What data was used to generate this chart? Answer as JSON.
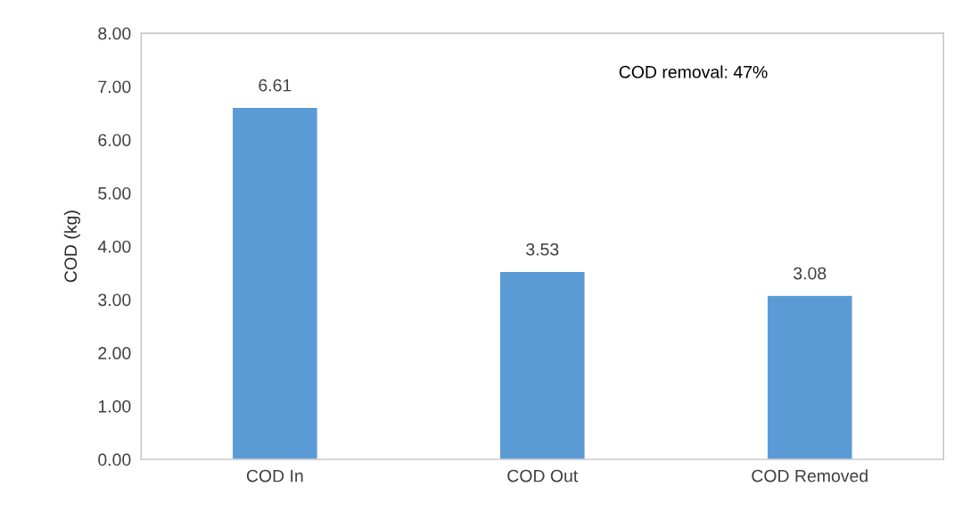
{
  "chart_data": {
    "type": "bar",
    "ylabel": "COD (kg)",
    "categories": [
      "COD In",
      "COD Out",
      "COD Removed"
    ],
    "values": [
      6.61,
      3.53,
      3.08
    ],
    "color": "#5b9bd5",
    "data_labels": true,
    "grid": false,
    "legend": false,
    "ylim": [
      0,
      8
    ],
    "yticks": [
      {
        "value": 0,
        "label": "0.00"
      },
      {
        "value": 1,
        "label": "1.00"
      },
      {
        "value": 2,
        "label": "2.00"
      },
      {
        "value": 3,
        "label": "3.00"
      },
      {
        "value": 4,
        "label": "4.00"
      },
      {
        "value": 5,
        "label": "5.00"
      },
      {
        "value": 6,
        "label": "6.00"
      },
      {
        "value": 7,
        "label": "7.00"
      },
      {
        "value": 8,
        "label": "8.00"
      }
    ],
    "annotations": [
      "COD removal: 47%"
    ]
  }
}
